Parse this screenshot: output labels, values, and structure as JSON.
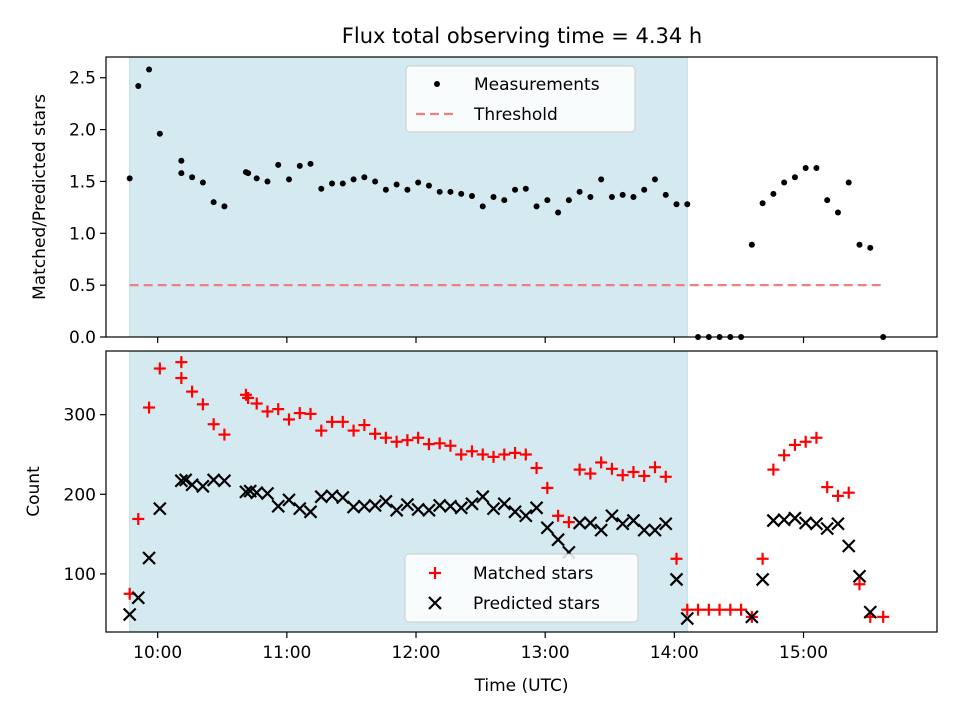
{
  "title": "Flux total observing time = 4.34 h",
  "chart_data": [
    {
      "type": "scatter",
      "ylabel": "Matched/Predicted stars",
      "xlim": [
        "09:36",
        "16:02"
      ],
      "ylim": [
        0,
        2.7
      ],
      "yticks": [
        0.0,
        0.5,
        1.0,
        1.5,
        2.0,
        2.5
      ],
      "ytick_labels": [
        "0.0",
        "0.5",
        "1.0",
        "1.5",
        "2.0",
        "2.5"
      ],
      "shaded_span": [
        "09:47",
        "14:06"
      ],
      "shade_color": "#d4eaf0",
      "legend_position": "upper center",
      "legend": [
        {
          "label": "Measurements",
          "marker": "dot",
          "color": "#000000"
        },
        {
          "label": "Threshold",
          "marker": "dashed-line",
          "color": "#f08080"
        }
      ],
      "threshold": {
        "name": "Threshold",
        "value": 0.5,
        "x": [
          "09:47",
          "15:37"
        ],
        "color": "#f08080"
      },
      "series": [
        {
          "name": "Measurements",
          "color": "#000000",
          "points": [
            [
              "09:47",
              1.53
            ],
            [
              "09:51",
              2.42
            ],
            [
              "09:56",
              2.58
            ],
            [
              "10:01",
              1.96
            ],
            [
              "10:11",
              1.7
            ],
            [
              "10:11",
              1.58
            ],
            [
              "10:16",
              1.54
            ],
            [
              "10:21",
              1.49
            ],
            [
              "10:26",
              1.3
            ],
            [
              "10:31",
              1.26
            ],
            [
              "10:41",
              1.59
            ],
            [
              "10:42",
              1.58
            ],
            [
              "10:46",
              1.53
            ],
            [
              "10:51",
              1.5
            ],
            [
              "10:56",
              1.66
            ],
            [
              "11:01",
              1.52
            ],
            [
              "11:06",
              1.65
            ],
            [
              "11:11",
              1.67
            ],
            [
              "11:16",
              1.43
            ],
            [
              "11:21",
              1.48
            ],
            [
              "11:26",
              1.48
            ],
            [
              "11:31",
              1.52
            ],
            [
              "11:36",
              1.54
            ],
            [
              "11:41",
              1.5
            ],
            [
              "11:46",
              1.42
            ],
            [
              "11:51",
              1.47
            ],
            [
              "11:56",
              1.42
            ],
            [
              "12:01",
              1.49
            ],
            [
              "12:06",
              1.46
            ],
            [
              "12:11",
              1.4
            ],
            [
              "12:16",
              1.4
            ],
            [
              "12:21",
              1.38
            ],
            [
              "12:26",
              1.36
            ],
            [
              "12:31",
              1.26
            ],
            [
              "12:36",
              1.35
            ],
            [
              "12:41",
              1.32
            ],
            [
              "12:46",
              1.42
            ],
            [
              "12:51",
              1.43
            ],
            [
              "12:56",
              1.26
            ],
            [
              "13:01",
              1.32
            ],
            [
              "13:06",
              1.2
            ],
            [
              "13:11",
              1.32
            ],
            [
              "13:16",
              1.4
            ],
            [
              "13:21",
              1.35
            ],
            [
              "13:26",
              1.52
            ],
            [
              "13:31",
              1.35
            ],
            [
              "13:36",
              1.37
            ],
            [
              "13:41",
              1.35
            ],
            [
              "13:46",
              1.42
            ],
            [
              "13:51",
              1.52
            ],
            [
              "13:56",
              1.37
            ],
            [
              "14:01",
              1.28
            ],
            [
              "14:06",
              1.28
            ],
            [
              "14:11",
              0.0
            ],
            [
              "14:16",
              0.0
            ],
            [
              "14:21",
              0.0
            ],
            [
              "14:26",
              0.0
            ],
            [
              "14:31",
              0.0
            ],
            [
              "14:36",
              0.89
            ],
            [
              "14:41",
              1.29
            ],
            [
              "14:46",
              1.38
            ],
            [
              "14:51",
              1.49
            ],
            [
              "14:56",
              1.54
            ],
            [
              "15:01",
              1.63
            ],
            [
              "15:06",
              1.63
            ],
            [
              "15:11",
              1.32
            ],
            [
              "15:16",
              1.2
            ],
            [
              "15:21",
              1.49
            ],
            [
              "15:26",
              0.89
            ],
            [
              "15:31",
              0.86
            ],
            [
              "15:37",
              0.0
            ]
          ]
        }
      ]
    },
    {
      "type": "scatter",
      "xlabel": "Time (UTC)",
      "ylabel": "Count",
      "xlim": [
        "09:36",
        "16:02"
      ],
      "ylim": [
        27,
        380
      ],
      "xticks": [
        "10:00",
        "11:00",
        "12:00",
        "13:00",
        "14:00",
        "15:00"
      ],
      "yticks": [
        100,
        200,
        300
      ],
      "ytick_labels": [
        "100",
        "200",
        "300"
      ],
      "shaded_span": [
        "09:47",
        "14:06"
      ],
      "shade_color": "#d4eaf0",
      "legend_position": "lower center",
      "legend": [
        {
          "label": "Matched stars",
          "marker": "plus",
          "color": "#ff0000"
        },
        {
          "label": "Predicted stars",
          "marker": "x",
          "color": "#000000"
        }
      ],
      "series": [
        {
          "name": "Matched stars",
          "marker": "plus",
          "color": "#ff0000",
          "points": [
            [
              "09:47",
              75
            ],
            [
              "09:51",
              169
            ],
            [
              "09:56",
              309
            ],
            [
              "10:01",
              358
            ],
            [
              "10:11",
              366
            ],
            [
              "10:11",
              346
            ],
            [
              "10:16",
              329
            ],
            [
              "10:21",
              313
            ],
            [
              "10:26",
              288
            ],
            [
              "10:31",
              275
            ],
            [
              "10:41",
              325
            ],
            [
              "10:42",
              321
            ],
            [
              "10:46",
              314
            ],
            [
              "10:51",
              304
            ],
            [
              "10:56",
              307
            ],
            [
              "11:01",
              294
            ],
            [
              "11:06",
              302
            ],
            [
              "11:11",
              301
            ],
            [
              "11:16",
              280
            ],
            [
              "11:21",
              291
            ],
            [
              "11:26",
              291
            ],
            [
              "11:31",
              280
            ],
            [
              "11:36",
              287
            ],
            [
              "11:41",
              276
            ],
            [
              "11:46",
              271
            ],
            [
              "11:51",
              266
            ],
            [
              "11:56",
              268
            ],
            [
              "12:01",
              271
            ],
            [
              "12:06",
              263
            ],
            [
              "12:11",
              264
            ],
            [
              "12:16",
              261
            ],
            [
              "12:21",
              250
            ],
            [
              "12:26",
              254
            ],
            [
              "12:31",
              250
            ],
            [
              "12:36",
              247
            ],
            [
              "12:41",
              250
            ],
            [
              "12:46",
              252
            ],
            [
              "12:51",
              250
            ],
            [
              "12:56",
              233
            ],
            [
              "13:01",
              208
            ],
            [
              "13:06",
              173
            ],
            [
              "13:11",
              165
            ],
            [
              "13:16",
              231
            ],
            [
              "13:21",
              226
            ],
            [
              "13:26",
              240
            ],
            [
              "13:31",
              232
            ],
            [
              "13:36",
              224
            ],
            [
              "13:41",
              228
            ],
            [
              "13:46",
              223
            ],
            [
              "13:51",
              234
            ],
            [
              "13:56",
              222
            ],
            [
              "14:01",
              119
            ],
            [
              "14:06",
              55
            ],
            [
              "14:11",
              55
            ],
            [
              "14:16",
              55
            ],
            [
              "14:21",
              55
            ],
            [
              "14:26",
              55
            ],
            [
              "14:31",
              55
            ],
            [
              "14:36",
              46
            ],
            [
              "14:41",
              119
            ],
            [
              "14:46",
              231
            ],
            [
              "14:51",
              249
            ],
            [
              "14:56",
              262
            ],
            [
              "15:01",
              266
            ],
            [
              "15:06",
              271
            ],
            [
              "15:11",
              209
            ],
            [
              "15:16",
              198
            ],
            [
              "15:21",
              202
            ],
            [
              "15:26",
              87
            ],
            [
              "15:31",
              46
            ],
            [
              "15:37",
              46
            ]
          ]
        },
        {
          "name": "Predicted stars",
          "marker": "x",
          "color": "#000000",
          "points": [
            [
              "09:47",
              49
            ],
            [
              "09:51",
              70
            ],
            [
              "09:56",
              120
            ],
            [
              "10:01",
              182
            ],
            [
              "10:11",
              217
            ],
            [
              "10:13",
              218
            ],
            [
              "10:16",
              212
            ],
            [
              "10:21",
              210
            ],
            [
              "10:26",
              218
            ],
            [
              "10:31",
              217
            ],
            [
              "10:41",
              203
            ],
            [
              "10:43",
              204
            ],
            [
              "10:46",
              202
            ],
            [
              "10:51",
              201
            ],
            [
              "10:56",
              185
            ],
            [
              "11:01",
              193
            ],
            [
              "11:06",
              182
            ],
            [
              "11:11",
              178
            ],
            [
              "11:16",
              197
            ],
            [
              "11:21",
              198
            ],
            [
              "11:26",
              196
            ],
            [
              "11:31",
              184
            ],
            [
              "11:36",
              185
            ],
            [
              "11:41",
              186
            ],
            [
              "11:46",
              191
            ],
            [
              "11:51",
              180
            ],
            [
              "11:56",
              187
            ],
            [
              "12:01",
              181
            ],
            [
              "12:06",
              180
            ],
            [
              "12:11",
              186
            ],
            [
              "12:16",
              185
            ],
            [
              "12:21",
              183
            ],
            [
              "12:26",
              188
            ],
            [
              "12:31",
              197
            ],
            [
              "12:36",
              182
            ],
            [
              "12:41",
              188
            ],
            [
              "12:46",
              178
            ],
            [
              "12:51",
              173
            ],
            [
              "12:56",
              183
            ],
            [
              "13:01",
              158
            ],
            [
              "13:06",
              143
            ],
            [
              "13:11",
              127
            ],
            [
              "13:16",
              164
            ],
            [
              "13:21",
              164
            ],
            [
              "13:26",
              155
            ],
            [
              "13:31",
              173
            ],
            [
              "13:36",
              163
            ],
            [
              "13:41",
              167
            ],
            [
              "13:46",
              155
            ],
            [
              "13:51",
              155
            ],
            [
              "13:56",
              163
            ],
            [
              "14:01",
              93
            ],
            [
              "14:06",
              44
            ],
            [
              "14:36",
              46
            ],
            [
              "14:41",
              93
            ],
            [
              "14:46",
              167
            ],
            [
              "14:51",
              168
            ],
            [
              "14:56",
              170
            ],
            [
              "15:01",
              164
            ],
            [
              "15:06",
              163
            ],
            [
              "15:11",
              157
            ],
            [
              "15:16",
              163
            ],
            [
              "15:21",
              135
            ],
            [
              "15:26",
              97
            ],
            [
              "15:31",
              52
            ]
          ]
        }
      ]
    }
  ]
}
